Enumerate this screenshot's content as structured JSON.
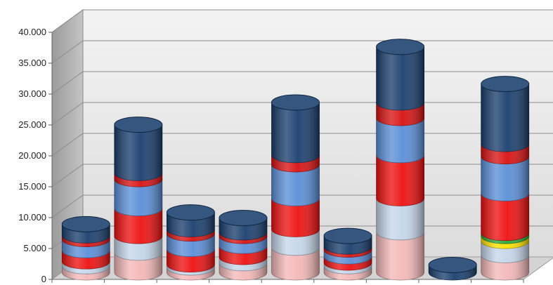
{
  "chart_data": {
    "type": "bar",
    "style": "3d-stacked-cylinder",
    "title": "",
    "xlabel": "",
    "ylabel": "",
    "ylim": [
      0,
      40000
    ],
    "y_ticks": [
      "0",
      "5.000",
      "10.000",
      "15.000",
      "20.000",
      "25.000",
      "30.000",
      "35.000",
      "40.000"
    ],
    "y_tick_values": [
      0,
      5000,
      10000,
      15000,
      20000,
      25000,
      30000,
      35000,
      40000
    ],
    "grid": true,
    "legend": "none",
    "categories": [
      "",
      "",
      "",
      "",
      "",
      "",
      "",
      "",
      ""
    ],
    "series": [
      {
        "color": "#f4b8b8",
        "values": [
          1000,
          3200,
          800,
          1500,
          4000,
          1000,
          6500,
          0,
          2800
        ]
      },
      {
        "color": "#c5d6ea",
        "values": [
          800,
          2700,
          500,
          1000,
          3000,
          600,
          5500,
          0,
          2300
        ]
      },
      {
        "color": "#ffe000",
        "values": [
          0,
          0,
          0,
          0,
          0,
          0,
          0,
          0,
          800
        ]
      },
      {
        "color": "#2aa836",
        "values": [
          0,
          0,
          0,
          0,
          0,
          0,
          0,
          0,
          500
        ]
      },
      {
        "color": "#ee1111",
        "values": [
          1800,
          4500,
          2500,
          1800,
          5000,
          1000,
          7000,
          0,
          6400
        ]
      },
      {
        "color": "#5b8fd8",
        "values": [
          1800,
          4700,
          2500,
          1600,
          5500,
          1100,
          6000,
          0,
          6000
        ]
      },
      {
        "color": "#d81212",
        "values": [
          600,
          1000,
          700,
          600,
          1500,
          500,
          2500,
          0,
          2000
        ]
      },
      {
        "color": "#1a3f6e",
        "values": [
          1800,
          7800,
          2700,
          2300,
          8500,
          1700,
          9000,
          1200,
          9700
        ]
      }
    ]
  }
}
